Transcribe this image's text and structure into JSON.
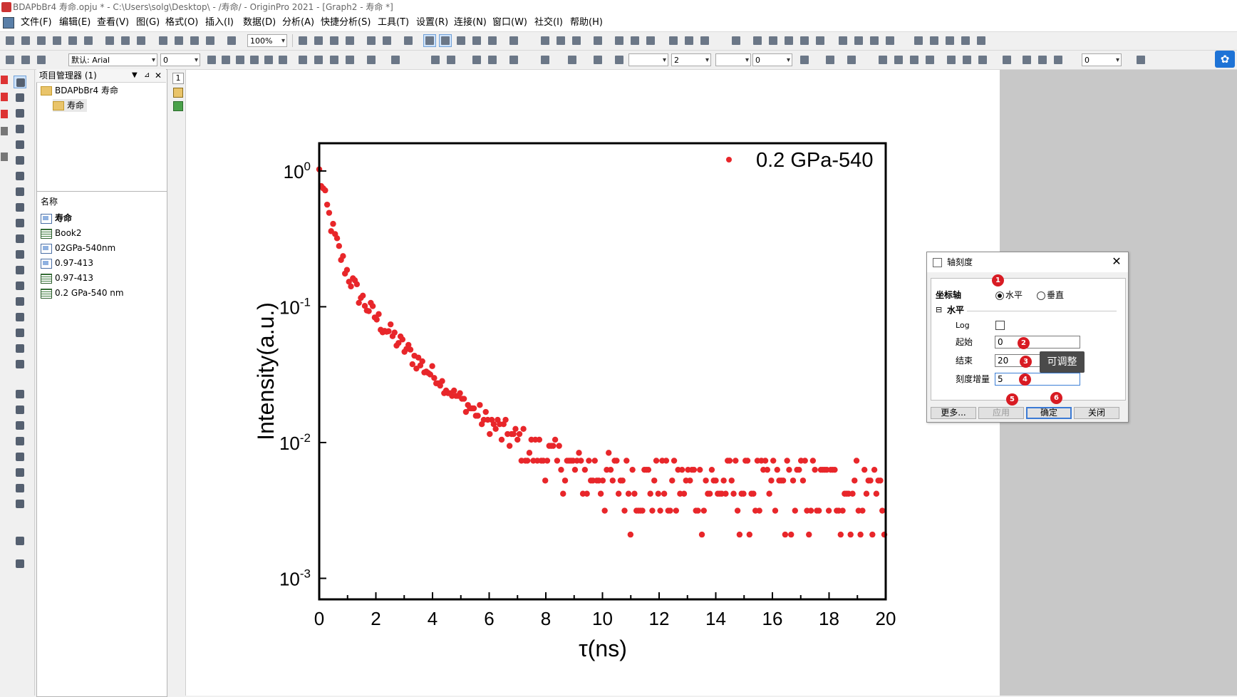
{
  "window": {
    "title": "BDAPbBr4 寿命.opju * - C:\\Users\\solg\\Desktop\\ - /寿命/ - OriginPro 2021 - [Graph2 - 寿命 *]"
  },
  "menu": [
    "文件(F)",
    "编辑(E)",
    "查看(V)",
    "图(G)",
    "格式(O)",
    "插入(I)",
    "数据(D)",
    "分析(A)",
    "快捷分析(S)",
    "工具(T)",
    "设置(R)",
    "连接(N)",
    "窗口(W)",
    "社交(I)",
    "帮助(H)"
  ],
  "toolbar": {
    "zoom": "100%",
    "font": "默认: Arial",
    "font_size": "0",
    "line_width": "2",
    "value_a": "0",
    "value_b": "0"
  },
  "project_manager": {
    "header": "项目管理器 (1)",
    "root": "BDAPbBr4 寿命",
    "folder": "寿命",
    "list_header": "名称",
    "items": [
      {
        "label": "寿命",
        "kind": "graph"
      },
      {
        "label": "Book2",
        "kind": "book"
      },
      {
        "label": "02GPa-540nm",
        "kind": "graph"
      },
      {
        "label": "0.97-413",
        "kind": "graph"
      },
      {
        "label": "0.97-413",
        "kind": "book"
      },
      {
        "label": "0.2 GPa-540 nm",
        "kind": "book"
      }
    ]
  },
  "page_strip": {
    "layer": "1"
  },
  "colors": {
    "data_points": "#e8262a",
    "workspace": "#c8c8c8",
    "badge": "#d81b23",
    "accent": "#3b7ad4"
  },
  "chart_data": {
    "type": "scatter",
    "series": [
      {
        "name": "0.2 GPa-540",
        "color": "#e8262a"
      }
    ],
    "xlabel": "τ(ns)",
    "ylabel": "Intensity(a.u.)",
    "xlim": [
      0,
      20
    ],
    "ylim": [
      0.0007,
      1.6
    ],
    "yscale": "log",
    "x_ticks": [
      "0",
      "2",
      "4",
      "6",
      "8",
      "10",
      "12",
      "14",
      "16",
      "18",
      "20"
    ],
    "y_ticks": [
      {
        "base": "10",
        "exp": "0"
      },
      {
        "base": "10",
        "exp": "-1"
      },
      {
        "base": "10",
        "exp": "-2"
      },
      {
        "base": "10",
        "exp": "-3"
      }
    ],
    "legend_position": "top-right",
    "decay": {
      "amp1": 0.75,
      "tau1": 0.35,
      "amp2": 0.22,
      "tau2": 1.9,
      "floor": 0.0085
    }
  },
  "dialog": {
    "title": "轴刻度",
    "axis_label": "坐标轴",
    "radio_horizontal": "水平",
    "radio_vertical": "垂直",
    "section": "水平",
    "log_label": "Log",
    "start_label": "起始",
    "start_value": "0",
    "end_label": "结束",
    "end_value": "20",
    "increment_label": "刻度增量",
    "increment_value": "5",
    "btn_more": "更多...",
    "btn_apply": "应用",
    "btn_ok": "确定",
    "btn_close": "关闭",
    "tooltip": "可调整",
    "badges": [
      "1",
      "2",
      "3",
      "4",
      "5",
      "6"
    ]
  }
}
